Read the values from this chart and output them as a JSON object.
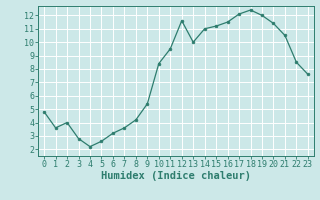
{
  "x": [
    0,
    1,
    2,
    3,
    4,
    5,
    6,
    7,
    8,
    9,
    10,
    11,
    12,
    13,
    14,
    15,
    16,
    17,
    18,
    19,
    20,
    21,
    22,
    23
  ],
  "y": [
    4.8,
    3.6,
    4.0,
    2.8,
    2.2,
    2.6,
    3.2,
    3.6,
    4.2,
    5.4,
    8.4,
    9.5,
    11.6,
    10.0,
    11.0,
    11.2,
    11.5,
    12.1,
    12.4,
    12.0,
    11.4,
    10.5,
    8.5,
    7.6
  ],
  "xlabel": "Humidex (Indice chaleur)",
  "bg_color": "#cce8e8",
  "line_color": "#2e7d6e",
  "marker_color": "#2e7d6e",
  "grid_color": "#ffffff",
  "ylim": [
    1.5,
    12.7
  ],
  "xlim": [
    -0.5,
    23.5
  ],
  "yticks": [
    2,
    3,
    4,
    5,
    6,
    7,
    8,
    9,
    10,
    11,
    12
  ],
  "xticks": [
    0,
    1,
    2,
    3,
    4,
    5,
    6,
    7,
    8,
    9,
    10,
    11,
    12,
    13,
    14,
    15,
    16,
    17,
    18,
    19,
    20,
    21,
    22,
    23
  ],
  "tick_fontsize": 6,
  "xlabel_fontsize": 7.5
}
